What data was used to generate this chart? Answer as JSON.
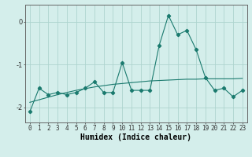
{
  "title": "",
  "xlabel": "Humidex (Indice chaleur)",
  "ylabel": "",
  "bg_color": "#d4eeeb",
  "line_color": "#1a7a6e",
  "grid_color": "#aed4cf",
  "x": [
    0,
    1,
    2,
    3,
    4,
    5,
    6,
    7,
    8,
    9,
    10,
    11,
    12,
    13,
    14,
    15,
    16,
    17,
    18,
    19,
    20,
    21,
    22,
    23
  ],
  "y_main": [
    -2.1,
    -1.55,
    -1.7,
    -1.65,
    -1.7,
    -1.65,
    -1.55,
    -1.4,
    -1.65,
    -1.65,
    -0.95,
    -1.6,
    -1.6,
    -1.6,
    -0.55,
    0.15,
    -0.3,
    -0.2,
    -0.65,
    -1.3,
    -1.6,
    -1.55,
    -1.75,
    -1.6
  ],
  "y_trend": [
    -1.88,
    -1.82,
    -1.76,
    -1.7,
    -1.65,
    -1.6,
    -1.56,
    -1.52,
    -1.49,
    -1.46,
    -1.44,
    -1.42,
    -1.4,
    -1.38,
    -1.37,
    -1.36,
    -1.35,
    -1.34,
    -1.34,
    -1.33,
    -1.33,
    -1.33,
    -1.33,
    -1.32
  ],
  "ylim": [
    -2.35,
    0.4
  ],
  "yticks": [
    -2,
    -1,
    0
  ],
  "ytick_labels": [
    "-2",
    "-1",
    "0"
  ],
  "xticks": [
    0,
    1,
    2,
    3,
    4,
    5,
    6,
    7,
    8,
    9,
    10,
    11,
    12,
    13,
    14,
    15,
    16,
    17,
    18,
    19,
    20,
    21,
    22,
    23
  ],
  "tick_fontsize": 5.5,
  "xlabel_fontsize": 7.0
}
